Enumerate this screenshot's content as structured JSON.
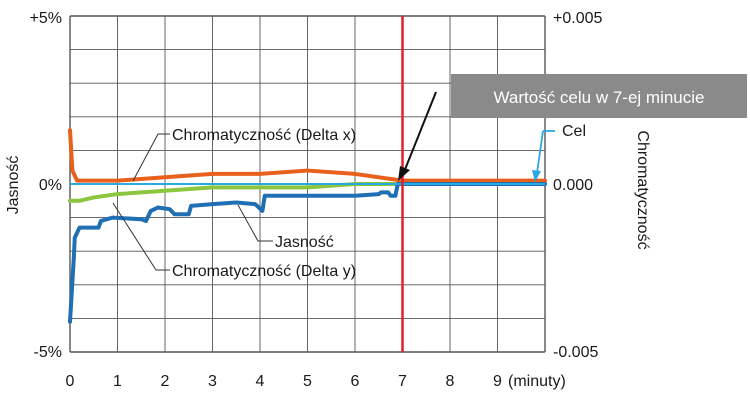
{
  "chart_data": {
    "type": "line",
    "title": "",
    "xlabel": "",
    "x_unit_label": "(minuty)",
    "x_ticks": [
      "0",
      "1",
      "2",
      "3",
      "4",
      "5",
      "6",
      "7",
      "8",
      "9"
    ],
    "xlim": [
      0,
      10
    ],
    "y_left": {
      "label": "Jasność",
      "ticks": [
        "+5%",
        "0%",
        "-5%"
      ],
      "range": [
        -5,
        5
      ],
      "unit": "%"
    },
    "y_right": {
      "label": "Chromatyczność",
      "ticks": [
        "+0.005",
        "0.000",
        "-0.005"
      ],
      "range": [
        -0.005,
        0.005
      ]
    },
    "grid": true,
    "target_line": {
      "label": "Cel",
      "y": 0,
      "color": "#2aa9e0"
    },
    "marker_line": {
      "x": 7,
      "color": "#e0202a"
    },
    "callout": {
      "label": "Wartość celu w 7-ej minucie",
      "x": 7,
      "y": 0
    },
    "series": [
      {
        "name": "Chromatyczność (Delta x)",
        "axis": "right",
        "color": "#e8601c",
        "x": [
          0,
          0.05,
          0.15,
          0.25,
          1,
          2,
          3,
          4,
          5,
          6,
          7,
          8,
          9,
          10
        ],
        "y": [
          0.0016,
          0.0004,
          0.0001,
          0.0001,
          0.0001,
          0.0002,
          0.0003,
          0.0003,
          0.0004,
          0.0003,
          0.0001,
          0.0001,
          0.0001,
          0.0001
        ]
      },
      {
        "name": "Chromatyczność (Delta y)",
        "axis": "right",
        "color": "#8cc63f",
        "x": [
          0,
          0.2,
          0.5,
          1,
          2,
          3,
          4,
          5,
          6,
          7,
          8,
          9,
          10
        ],
        "y": [
          -0.0005,
          -0.0005,
          -0.0004,
          -0.0003,
          -0.0002,
          -0.0001,
          -0.0001,
          -0.0001,
          0,
          0,
          0,
          0,
          0
        ]
      },
      {
        "name": "Jasność",
        "axis": "left",
        "color": "#1f6fb4",
        "x": [
          0,
          0.08,
          0.1,
          0.2,
          0.6,
          0.65,
          0.9,
          1.5,
          1.6,
          1.7,
          1.85,
          2.1,
          2.2,
          2.5,
          2.55,
          3,
          3.5,
          3.9,
          4.05,
          4.1,
          5,
          5.5,
          6,
          6.5,
          6.55,
          6.7,
          6.75,
          6.85,
          6.9,
          7,
          8,
          9,
          10
        ],
        "y": [
          -4.1,
          -2.2,
          -1.6,
          -1.3,
          -1.3,
          -1.1,
          -1.0,
          -1.05,
          -1.1,
          -0.8,
          -0.7,
          -0.75,
          -0.9,
          -0.9,
          -0.65,
          -0.6,
          -0.55,
          -0.6,
          -0.8,
          -0.35,
          -0.35,
          -0.35,
          -0.35,
          -0.3,
          -0.25,
          -0.25,
          -0.35,
          -0.35,
          0.0,
          0.0,
          0.0,
          0.0,
          0.0
        ]
      }
    ],
    "series_labels": [
      {
        "text": "Chromatyczność (Delta x)",
        "series": 0
      },
      {
        "text": "Jasność",
        "series": 2
      },
      {
        "text": "Chromatyczność (Delta y)",
        "series": 1
      }
    ]
  }
}
